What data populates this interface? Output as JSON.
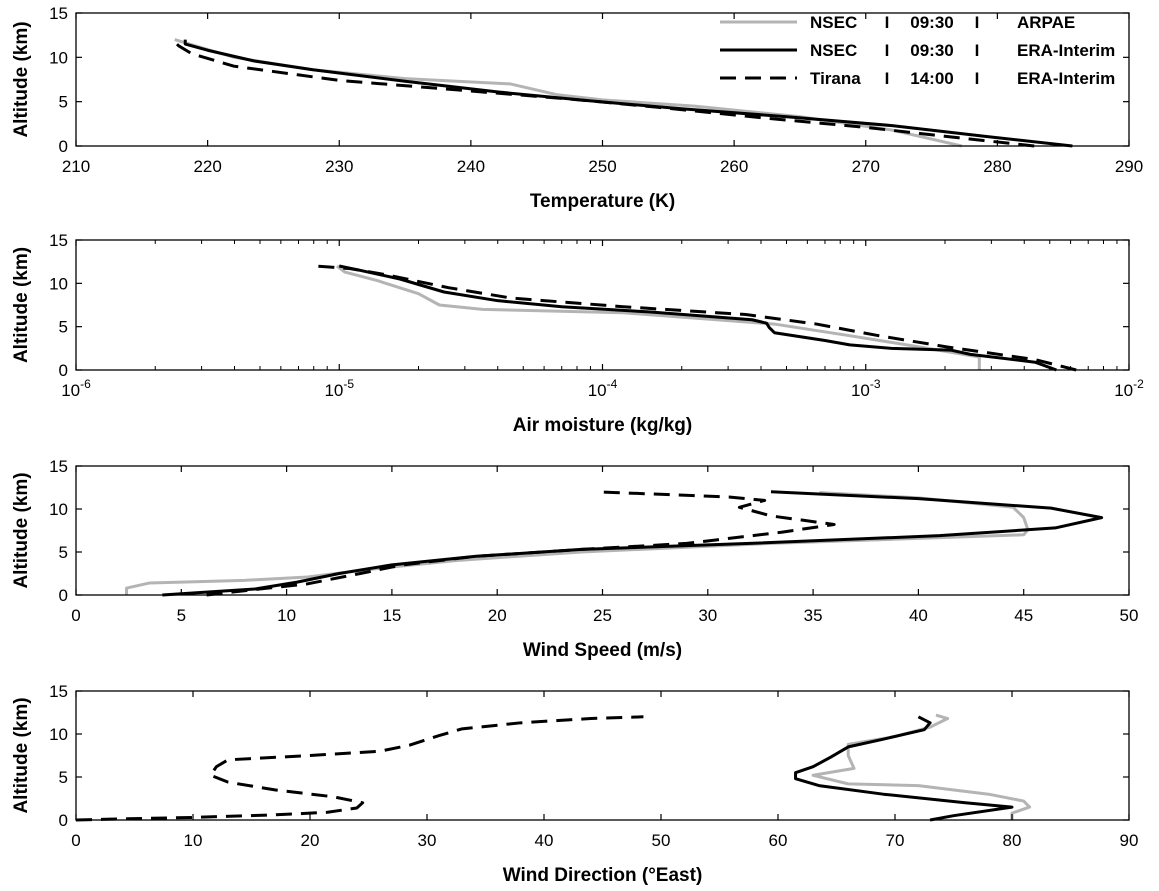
{
  "chart_data": [
    {
      "type": "line",
      "xlabel": "Temperature (K)",
      "ylabel": "Altitude (km)",
      "xlim": [
        210,
        290
      ],
      "ylim": [
        0,
        15
      ],
      "xticks": [
        210,
        220,
        230,
        240,
        250,
        260,
        270,
        280,
        290
      ],
      "xtick_labels": [
        "210",
        "220",
        "230",
        "240",
        "250",
        "260",
        "270",
        "280",
        "290"
      ],
      "yticks": [
        0,
        5,
        10,
        15
      ],
      "ytick_labels": [
        "0",
        "5",
        "10",
        "15"
      ],
      "grid": false,
      "legend_position": "top-right",
      "legend": [
        {
          "station": "NSEC",
          "time": "09:30",
          "source": "ARPAE"
        },
        {
          "station": "NSEC",
          "time": "09:30",
          "source": "ERA-Interim"
        },
        {
          "station": "Tirana",
          "time": "14:00",
          "source": "ERA-Interim"
        }
      ],
      "series": [
        {
          "style": "solid-gray",
          "points": [
            [
              277.3,
              0
            ],
            [
              272,
              1.8
            ],
            [
              265,
              3.3
            ],
            [
              257,
              4.5
            ],
            [
              250,
              5.2
            ],
            [
              246.5,
              5.8
            ],
            [
              243,
              7
            ],
            [
              235,
              7.6
            ],
            [
              228,
              8.6
            ],
            [
              222,
              10
            ],
            [
              219.5,
              11.1
            ],
            [
              217.5,
              12
            ]
          ]
        },
        {
          "style": "solid-black",
          "points": [
            [
              285.7,
              0
            ],
            [
              279,
              1.1
            ],
            [
              272,
              2.3
            ],
            [
              264,
              3.3
            ],
            [
              256,
              4.2
            ],
            [
              249,
              5.1
            ],
            [
              242,
              6.1
            ],
            [
              235,
              7.3
            ],
            [
              228,
              8.6
            ],
            [
              223.5,
              9.6
            ],
            [
              220,
              10.8
            ],
            [
              218.3,
              11.5
            ],
            [
              218.3,
              12
            ]
          ]
        },
        {
          "style": "dashed-black",
          "points": [
            [
              282.8,
              0
            ],
            [
              276,
              1.1
            ],
            [
              270,
              2.1
            ],
            [
              262,
              3.2
            ],
            [
              254,
              4.4
            ],
            [
              247.5,
              5.3
            ],
            [
              240,
              6.2
            ],
            [
              230,
              7.4
            ],
            [
              222,
              9
            ],
            [
              218.8,
              10.4
            ],
            [
              217.8,
              11.3
            ],
            [
              217.3,
              12
            ]
          ]
        }
      ]
    },
    {
      "type": "line",
      "xlabel": "Air moisture (kg/kg)",
      "ylabel": "Altitude (km)",
      "xscale": "log",
      "xlim": [
        1e-06,
        0.01
      ],
      "ylim": [
        0,
        15
      ],
      "xticks": [
        1e-06,
        1e-05,
        0.0001,
        0.001,
        0.01
      ],
      "xtick_labels": [
        {
          "base": "10",
          "exp": "-6"
        },
        {
          "base": "10",
          "exp": "-5"
        },
        {
          "base": "10",
          "exp": "-4"
        },
        {
          "base": "10",
          "exp": "-3"
        },
        {
          "base": "10",
          "exp": "-2"
        }
      ],
      "yticks": [
        0,
        5,
        10,
        15
      ],
      "ytick_labels": [
        "0",
        "5",
        "10",
        "15"
      ],
      "grid": false,
      "series": [
        {
          "style": "solid-gray",
          "points": [
            [
              0.0027,
              0
            ],
            [
              0.0027,
              1.5
            ],
            [
              0.0015,
              2.8
            ],
            [
              0.00085,
              4
            ],
            [
              0.00045,
              5.3
            ],
            [
              0.00012,
              6.6
            ],
            [
              3.5e-05,
              7.0
            ],
            [
              2.4e-05,
              7.5
            ],
            [
              2e-05,
              8.8
            ],
            [
              1.4e-05,
              10.3
            ],
            [
              1.05e-05,
              11.3
            ],
            [
              9.8e-06,
              12
            ]
          ]
        },
        {
          "style": "solid-black",
          "points": [
            [
              0.0053,
              0
            ],
            [
              0.0044,
              0.9
            ],
            [
              0.0025,
              1.8
            ],
            [
              0.0021,
              2.3
            ],
            [
              0.00125,
              2.5
            ],
            [
              0.00087,
              2.9
            ],
            [
              0.0007,
              3.4
            ],
            [
              0.00045,
              4.3
            ],
            [
              0.00043,
              4.9
            ],
            [
              0.00042,
              5.4
            ],
            [
              0.00037,
              5.8
            ],
            [
              0.00015,
              6.7
            ],
            [
              7e-05,
              7.3
            ],
            [
              4e-05,
              8.0
            ],
            [
              2.5e-05,
              9.0
            ],
            [
              1.7e-05,
              10.5
            ],
            [
              1.2e-05,
              11.5
            ],
            [
              1e-05,
              12
            ]
          ]
        },
        {
          "style": "dashed-black",
          "points": [
            [
              0.0063,
              0
            ],
            [
              0.0044,
              1.2
            ],
            [
              0.002,
              2.7
            ],
            [
              0.0011,
              4
            ],
            [
              0.00065,
              5.3
            ],
            [
              0.00035,
              6.4
            ],
            [
              0.00012,
              7.3
            ],
            [
              4.5e-05,
              8.3
            ],
            [
              2.6e-05,
              9.5
            ],
            [
              1.5e-05,
              11
            ],
            [
              1.1e-05,
              11.7
            ],
            [
              8.1e-06,
              12
            ]
          ]
        }
      ]
    },
    {
      "type": "line",
      "xlabel": "Wind Speed (m/s)",
      "ylabel": "Altitude (km)",
      "xlim": [
        0,
        50
      ],
      "ylim": [
        0,
        15
      ],
      "xticks": [
        0,
        5,
        10,
        15,
        20,
        25,
        30,
        35,
        40,
        45,
        50
      ],
      "xtick_labels": [
        "0",
        "5",
        "10",
        "15",
        "20",
        "25",
        "30",
        "35",
        "40",
        "45",
        "50"
      ],
      "yticks": [
        0,
        5,
        10,
        15
      ],
      "ytick_labels": [
        "0",
        "5",
        "10",
        "15"
      ],
      "grid": false,
      "series": [
        {
          "style": "solid-gray",
          "points": [
            [
              2.4,
              0
            ],
            [
              2.4,
              0.8
            ],
            [
              3.5,
              1.4
            ],
            [
              8,
              1.7
            ],
            [
              11,
              2.1
            ],
            [
              14,
              3
            ],
            [
              18,
              4
            ],
            [
              24,
              5
            ],
            [
              33,
              6
            ],
            [
              45,
              7
            ],
            [
              45.2,
              7.6
            ],
            [
              45,
              9
            ],
            [
              44.5,
              10.2
            ],
            [
              40,
              11.3
            ],
            [
              35.3,
              11.9
            ]
          ]
        },
        {
          "style": "solid-black",
          "points": [
            [
              4.1,
              0
            ],
            [
              6,
              0.3
            ],
            [
              8.5,
              0.7
            ],
            [
              10.5,
              1.5
            ],
            [
              12.5,
              2.5
            ],
            [
              15,
              3.5
            ],
            [
              19,
              4.5
            ],
            [
              24,
              5.3
            ],
            [
              32,
              6
            ],
            [
              41,
              6.9
            ],
            [
              46.5,
              7.8
            ],
            [
              48.7,
              9
            ],
            [
              46.3,
              10.1
            ],
            [
              40,
              11.2
            ],
            [
              33,
              12
            ]
          ]
        },
        {
          "style": "dashed-black",
          "points": [
            [
              6.2,
              0
            ],
            [
              8,
              0.5
            ],
            [
              11,
              1.3
            ],
            [
              13.5,
              2.5
            ],
            [
              15.5,
              3.5
            ],
            [
              19,
              4.5
            ],
            [
              24,
              5.3
            ],
            [
              29,
              6
            ],
            [
              33.5,
              7.3
            ],
            [
              36,
              8.2
            ],
            [
              33,
              9.2
            ],
            [
              31.5,
              10.2
            ],
            [
              32.7,
              11
            ],
            [
              31,
              11.4
            ],
            [
              24.7,
              12
            ]
          ]
        }
      ]
    },
    {
      "type": "line",
      "xlabel": "Wind Direction (°East)",
      "ylabel": "Altitude (km)",
      "xlim": [
        0,
        90
      ],
      "ylim": [
        0,
        15
      ],
      "xticks": [
        0,
        10,
        20,
        30,
        40,
        50,
        60,
        70,
        80,
        90
      ],
      "xtick_labels": [
        "0",
        "10",
        "20",
        "30",
        "40",
        "50",
        "60",
        "70",
        "80",
        "90"
      ],
      "yticks": [
        0,
        5,
        10,
        15
      ],
      "ytick_labels": [
        "0",
        "5",
        "10",
        "15"
      ],
      "grid": false,
      "series": [
        {
          "style": "solid-gray",
          "points": [
            [
              80,
              0
            ],
            [
              80,
              0.8
            ],
            [
              81.5,
              1.5
            ],
            [
              81,
              2.2
            ],
            [
              78,
              3
            ],
            [
              72,
              4
            ],
            [
              66,
              4.2
            ],
            [
              63,
              5.2
            ],
            [
              66.5,
              6
            ],
            [
              66,
              7.5
            ],
            [
              66,
              8.8
            ],
            [
              70,
              9.7
            ],
            [
              73,
              10.8
            ],
            [
              74.5,
              11.8
            ],
            [
              73.5,
              12.2
            ]
          ]
        },
        {
          "style": "solid-black",
          "points": [
            [
              73,
              0
            ],
            [
              75,
              0.5
            ],
            [
              80,
              1.5
            ],
            [
              76,
              2
            ],
            [
              69,
              3
            ],
            [
              63.5,
              4
            ],
            [
              61.5,
              4.8
            ],
            [
              61.5,
              5.5
            ],
            [
              63,
              6.2
            ],
            [
              64.5,
              7.3
            ],
            [
              66,
              8.5
            ],
            [
              69,
              9.4
            ],
            [
              72.5,
              10.5
            ],
            [
              73,
              11.3
            ],
            [
              72,
              12
            ]
          ]
        },
        {
          "style": "dashed-black",
          "points": [
            [
              0,
              0
            ],
            [
              3,
              0.1
            ],
            [
              10,
              0.3
            ],
            [
              17,
              0.6
            ],
            [
              21.5,
              0.9
            ],
            [
              24,
              1.4
            ],
            [
              24.5,
              2
            ],
            [
              22,
              2.7
            ],
            [
              17,
              3.5
            ],
            [
              13,
              4.4
            ],
            [
              11.5,
              5.2
            ],
            [
              12,
              6.2
            ],
            [
              13,
              7
            ],
            [
              20,
              7.5
            ],
            [
              26,
              8
            ],
            [
              28.5,
              8.7
            ],
            [
              31,
              9.8
            ],
            [
              33,
              10.6
            ],
            [
              38,
              11.3
            ],
            [
              44,
              11.8
            ],
            [
              48.5,
              12
            ]
          ]
        }
      ]
    }
  ]
}
